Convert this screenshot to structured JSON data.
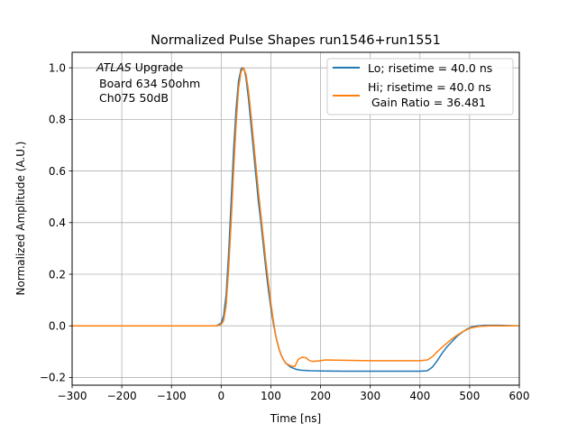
{
  "chart_data": {
    "type": "line",
    "title": "Normalized Pulse Shapes run1546+run1551",
    "xlabel": "Time [ns]",
    "ylabel": "Normalized Amplitude (A.U.)",
    "xlim": [
      -300,
      600
    ],
    "ylim": [
      -0.23,
      1.06
    ],
    "xticks": [
      -300,
      -200,
      -100,
      0,
      100,
      200,
      300,
      400,
      500,
      600
    ],
    "xtick_labels": [
      "−300",
      "−200",
      "−100",
      "0",
      "100",
      "200",
      "300",
      "400",
      "500",
      "600"
    ],
    "yticks": [
      -0.2,
      0.0,
      0.2,
      0.4,
      0.6,
      0.8,
      1.0
    ],
    "ytick_labels": [
      "−0.2",
      "0.0",
      "0.2",
      "0.4",
      "0.6",
      "0.8",
      "1.0"
    ],
    "grid": true,
    "legend_position": "top-right",
    "annotation": {
      "line1_italic": "ATLAS",
      "line1_rest": " Upgrade",
      "line2": "Board 634 50ohm",
      "line3": "Ch075 50dB"
    },
    "series": [
      {
        "name": "Lo; risetime = 40.0 ns",
        "color": "#1f77b4",
        "points": [
          [
            -300,
            0.0
          ],
          [
            -100,
            0.0
          ],
          [
            -10,
            0.0
          ],
          [
            0,
            0.01
          ],
          [
            5,
            0.04
          ],
          [
            10,
            0.12
          ],
          [
            15,
            0.28
          ],
          [
            20,
            0.48
          ],
          [
            25,
            0.68
          ],
          [
            30,
            0.84
          ],
          [
            35,
            0.95
          ],
          [
            40,
            0.995
          ],
          [
            43,
            1.0
          ],
          [
            47,
            0.99
          ],
          [
            50,
            0.96
          ],
          [
            55,
            0.88
          ],
          [
            60,
            0.78
          ],
          [
            65,
            0.68
          ],
          [
            70,
            0.58
          ],
          [
            75,
            0.48
          ],
          [
            80,
            0.4
          ],
          [
            85,
            0.31
          ],
          [
            90,
            0.22
          ],
          [
            95,
            0.14
          ],
          [
            100,
            0.07
          ],
          [
            105,
            0.01
          ],
          [
            110,
            -0.04
          ],
          [
            115,
            -0.08
          ],
          [
            120,
            -0.11
          ],
          [
            125,
            -0.13
          ],
          [
            130,
            -0.145
          ],
          [
            140,
            -0.16
          ],
          [
            150,
            -0.168
          ],
          [
            160,
            -0.172
          ],
          [
            180,
            -0.174
          ],
          [
            200,
            -0.175
          ],
          [
            250,
            -0.176
          ],
          [
            300,
            -0.176
          ],
          [
            350,
            -0.176
          ],
          [
            400,
            -0.176
          ],
          [
            415,
            -0.174
          ],
          [
            425,
            -0.16
          ],
          [
            435,
            -0.135
          ],
          [
            445,
            -0.105
          ],
          [
            455,
            -0.08
          ],
          [
            465,
            -0.06
          ],
          [
            475,
            -0.04
          ],
          [
            485,
            -0.025
          ],
          [
            495,
            -0.012
          ],
          [
            505,
            -0.004
          ],
          [
            515,
            0.0
          ],
          [
            530,
            0.002
          ],
          [
            560,
            0.002
          ],
          [
            600,
            0.0
          ]
        ]
      },
      {
        "name": "Hi; risetime = 40.0 ns",
        "name_line2": "Gain Ratio = 36.481",
        "color": "#ff7f0e",
        "points": [
          [
            -300,
            0.0
          ],
          [
            -100,
            0.0
          ],
          [
            -10,
            0.0
          ],
          [
            0,
            0.005
          ],
          [
            5,
            0.02
          ],
          [
            10,
            0.08
          ],
          [
            15,
            0.22
          ],
          [
            20,
            0.4
          ],
          [
            25,
            0.6
          ],
          [
            30,
            0.78
          ],
          [
            35,
            0.92
          ],
          [
            40,
            0.985
          ],
          [
            45,
            1.0
          ],
          [
            50,
            0.975
          ],
          [
            55,
            0.91
          ],
          [
            60,
            0.82
          ],
          [
            65,
            0.72
          ],
          [
            70,
            0.62
          ],
          [
            75,
            0.52
          ],
          [
            80,
            0.43
          ],
          [
            85,
            0.34
          ],
          [
            90,
            0.25
          ],
          [
            95,
            0.17
          ],
          [
            100,
            0.09
          ],
          [
            105,
            0.02
          ],
          [
            110,
            -0.04
          ],
          [
            115,
            -0.08
          ],
          [
            120,
            -0.11
          ],
          [
            125,
            -0.13
          ],
          [
            130,
            -0.145
          ],
          [
            140,
            -0.155
          ],
          [
            148,
            -0.158
          ],
          [
            155,
            -0.13
          ],
          [
            162,
            -0.122
          ],
          [
            170,
            -0.123
          ],
          [
            178,
            -0.135
          ],
          [
            185,
            -0.138
          ],
          [
            195,
            -0.136
          ],
          [
            210,
            -0.132
          ],
          [
            230,
            -0.133
          ],
          [
            260,
            -0.134
          ],
          [
            300,
            -0.135
          ],
          [
            350,
            -0.135
          ],
          [
            400,
            -0.135
          ],
          [
            415,
            -0.132
          ],
          [
            425,
            -0.12
          ],
          [
            435,
            -0.1
          ],
          [
            445,
            -0.082
          ],
          [
            455,
            -0.066
          ],
          [
            465,
            -0.05
          ],
          [
            475,
            -0.036
          ],
          [
            485,
            -0.024
          ],
          [
            495,
            -0.014
          ],
          [
            505,
            -0.007
          ],
          [
            520,
            -0.002
          ],
          [
            540,
            0.0
          ],
          [
            600,
            0.0
          ]
        ]
      }
    ]
  }
}
